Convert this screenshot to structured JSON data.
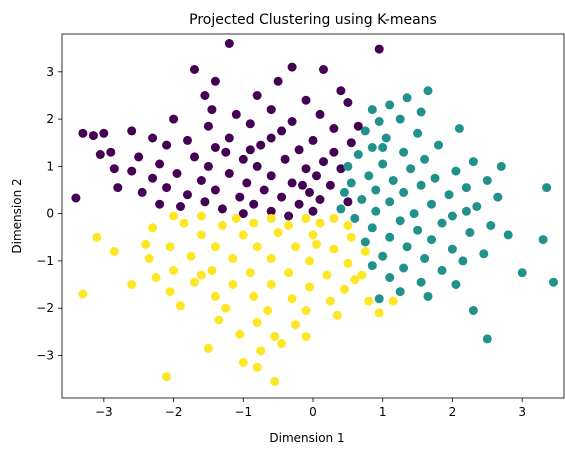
{
  "chart_data": {
    "type": "scatter",
    "title": "Projected Clustering using K-means",
    "xlabel": "Dimension 1",
    "ylabel": "Dimension 2",
    "xlim": [
      -3.6,
      3.6
    ],
    "ylim": [
      -3.9,
      3.8
    ],
    "xticks": [
      -3,
      -2,
      -1,
      0,
      1,
      2,
      3
    ],
    "yticks": [
      -3,
      -2,
      -1,
      0,
      1,
      2,
      3
    ],
    "xtick_labels": [
      "−3",
      "−2",
      "−1",
      "0",
      "1",
      "2",
      "3"
    ],
    "ytick_labels": [
      "−3",
      "−2",
      "−1",
      "0",
      "1",
      "2",
      "3"
    ],
    "grid": false,
    "legend": "none",
    "colors": {
      "purple": "#440154",
      "teal": "#21918c",
      "yellow": "#fde725"
    },
    "series": [
      {
        "color": "#440154",
        "points": [
          [
            -1.2,
            3.6
          ],
          [
            0.95,
            3.48
          ],
          [
            -0.3,
            3.1
          ],
          [
            0.15,
            3.05
          ],
          [
            -1.7,
            3.05
          ],
          [
            -1.4,
            2.8
          ],
          [
            -0.5,
            2.8
          ],
          [
            0.4,
            2.6
          ],
          [
            -1.55,
            2.5
          ],
          [
            -0.8,
            2.5
          ],
          [
            -0.1,
            2.4
          ],
          [
            0.5,
            2.35
          ],
          [
            -1.45,
            2.2
          ],
          [
            -1.1,
            2.1
          ],
          [
            -0.6,
            2.2
          ],
          [
            0.1,
            2.1
          ],
          [
            -2.0,
            2.0
          ],
          [
            -1.5,
            1.85
          ],
          [
            -0.9,
            1.9
          ],
          [
            -0.3,
            1.95
          ],
          [
            0.3,
            1.8
          ],
          [
            0.65,
            1.85
          ],
          [
            -2.6,
            1.75
          ],
          [
            -3.0,
            1.7
          ],
          [
            -3.3,
            1.7
          ],
          [
            -3.15,
            1.65
          ],
          [
            -2.3,
            1.6
          ],
          [
            -1.8,
            1.55
          ],
          [
            -1.2,
            1.6
          ],
          [
            -0.6,
            1.6
          ],
          [
            0.0,
            1.55
          ],
          [
            0.55,
            1.5
          ],
          [
            -2.1,
            1.45
          ],
          [
            -1.4,
            1.4
          ],
          [
            -0.9,
            1.35
          ],
          [
            -0.2,
            1.35
          ],
          [
            0.3,
            1.3
          ],
          [
            -3.05,
            1.25
          ],
          [
            -2.9,
            1.3
          ],
          [
            -2.5,
            1.2
          ],
          [
            -1.7,
            1.2
          ],
          [
            -1.0,
            1.15
          ],
          [
            -0.4,
            1.15
          ],
          [
            0.15,
            1.1
          ],
          [
            -2.2,
            1.05
          ],
          [
            -1.5,
            1.0
          ],
          [
            -0.8,
            1.0
          ],
          [
            -0.1,
            0.95
          ],
          [
            0.4,
            0.95
          ],
          [
            -2.85,
            0.95
          ],
          [
            -2.6,
            0.9
          ],
          [
            -1.95,
            0.85
          ],
          [
            -1.2,
            0.85
          ],
          [
            -0.6,
            0.8
          ],
          [
            0.05,
            0.8
          ],
          [
            -2.3,
            0.75
          ],
          [
            -1.6,
            0.7
          ],
          [
            -0.95,
            0.65
          ],
          [
            -0.3,
            0.65
          ],
          [
            0.25,
            0.6
          ],
          [
            -2.1,
            0.55
          ],
          [
            -1.4,
            0.5
          ],
          [
            -0.7,
            0.5
          ],
          [
            -0.05,
            0.45
          ],
          [
            -2.8,
            0.55
          ],
          [
            -2.45,
            0.45
          ],
          [
            -1.8,
            0.4
          ],
          [
            -1.05,
            0.35
          ],
          [
            -0.45,
            0.35
          ],
          [
            0.1,
            0.3
          ],
          [
            -1.55,
            0.25
          ],
          [
            -0.85,
            0.2
          ],
          [
            -0.2,
            0.2
          ],
          [
            -1.3,
            0.1
          ],
          [
            -0.6,
            0.05
          ],
          [
            0.0,
            0.05
          ],
          [
            -3.4,
            0.33
          ],
          [
            -2.2,
            0.2
          ],
          [
            -1.0,
            0.0
          ],
          [
            -0.35,
            -0.05
          ],
          [
            -1.9,
            0.15
          ],
          [
            -0.15,
            0.6
          ],
          [
            -1.25,
            1.3
          ],
          [
            -0.45,
            1.75
          ],
          [
            0.5,
            0.25
          ],
          [
            -0.75,
            1.45
          ]
        ]
      },
      {
        "color": "#21918c",
        "points": [
          [
            1.65,
            2.6
          ],
          [
            1.35,
            2.45
          ],
          [
            1.1,
            2.3
          ],
          [
            0.85,
            2.2
          ],
          [
            1.55,
            2.15
          ],
          [
            1.25,
            2.0
          ],
          [
            0.95,
            1.95
          ],
          [
            2.1,
            1.8
          ],
          [
            0.75,
            1.75
          ],
          [
            1.5,
            1.7
          ],
          [
            1.05,
            1.6
          ],
          [
            1.8,
            1.45
          ],
          [
            0.85,
            1.4
          ],
          [
            1.3,
            1.3
          ],
          [
            0.65,
            1.25
          ],
          [
            1.6,
            1.15
          ],
          [
            2.3,
            1.1
          ],
          [
            1.0,
            1.05
          ],
          [
            0.5,
            1.0
          ],
          [
            2.7,
            1.0
          ],
          [
            1.4,
            0.95
          ],
          [
            2.05,
            0.9
          ],
          [
            0.8,
            0.8
          ],
          [
            1.75,
            0.75
          ],
          [
            1.15,
            0.7
          ],
          [
            2.5,
            0.7
          ],
          [
            0.55,
            0.65
          ],
          [
            1.55,
            0.6
          ],
          [
            2.2,
            0.55
          ],
          [
            3.35,
            0.55
          ],
          [
            0.9,
            0.5
          ],
          [
            1.3,
            0.45
          ],
          [
            1.95,
            0.4
          ],
          [
            2.65,
            0.35
          ],
          [
            0.7,
            0.3
          ],
          [
            1.1,
            0.25
          ],
          [
            1.7,
            0.2
          ],
          [
            2.35,
            0.15
          ],
          [
            0.4,
            0.1
          ],
          [
            0.9,
            0.05
          ],
          [
            1.45,
            0.0
          ],
          [
            2.0,
            -0.05
          ],
          [
            0.6,
            -0.1
          ],
          [
            1.25,
            -0.15
          ],
          [
            1.85,
            -0.2
          ],
          [
            2.55,
            -0.25
          ],
          [
            0.85,
            -0.3
          ],
          [
            1.5,
            -0.35
          ],
          [
            2.25,
            -0.4
          ],
          [
            2.8,
            -0.45
          ],
          [
            1.1,
            -0.5
          ],
          [
            1.7,
            -0.55
          ],
          [
            3.3,
            -0.55
          ],
          [
            0.75,
            -0.6
          ],
          [
            1.35,
            -0.7
          ],
          [
            2.0,
            -0.75
          ],
          [
            2.45,
            -0.85
          ],
          [
            1.0,
            -0.9
          ],
          [
            1.6,
            -0.95
          ],
          [
            2.15,
            -1.0
          ],
          [
            0.85,
            -1.1
          ],
          [
            1.3,
            -1.15
          ],
          [
            1.85,
            -1.2
          ],
          [
            3.0,
            -1.25
          ],
          [
            1.1,
            -1.35
          ],
          [
            1.55,
            -1.45
          ],
          [
            2.05,
            -1.5
          ],
          [
            3.45,
            -1.45
          ],
          [
            1.25,
            -1.65
          ],
          [
            1.65,
            -1.75
          ],
          [
            0.95,
            -1.8
          ],
          [
            2.3,
            -2.05
          ],
          [
            2.5,
            -2.65
          ],
          [
            0.45,
            0.45
          ],
          [
            1.0,
            1.4
          ],
          [
            2.2,
            0.05
          ]
        ]
      },
      {
        "color": "#fde725",
        "points": [
          [
            -2.0,
            -0.05
          ],
          [
            -1.6,
            -0.05
          ],
          [
            -1.1,
            -0.1
          ],
          [
            -0.6,
            -0.1
          ],
          [
            -0.1,
            -0.1
          ],
          [
            0.3,
            -0.1
          ],
          [
            -1.85,
            -0.2
          ],
          [
            -1.3,
            -0.25
          ],
          [
            -0.85,
            -0.2
          ],
          [
            -0.35,
            -0.25
          ],
          [
            0.1,
            -0.2
          ],
          [
            0.5,
            -0.25
          ],
          [
            -3.1,
            -0.5
          ],
          [
            -2.4,
            -0.65
          ],
          [
            -1.6,
            -0.45
          ],
          [
            -1.0,
            -0.45
          ],
          [
            -0.5,
            -0.4
          ],
          [
            0.0,
            -0.45
          ],
          [
            0.55,
            -0.5
          ],
          [
            -2.05,
            -0.7
          ],
          [
            -1.4,
            -0.7
          ],
          [
            -0.8,
            -0.7
          ],
          [
            -0.25,
            -0.7
          ],
          [
            0.3,
            -0.75
          ],
          [
            0.75,
            -0.8
          ],
          [
            -2.85,
            -0.8
          ],
          [
            -2.35,
            -0.95
          ],
          [
            -1.75,
            -0.9
          ],
          [
            -1.15,
            -0.95
          ],
          [
            -0.6,
            -0.95
          ],
          [
            -0.05,
            -1.0
          ],
          [
            0.5,
            -1.05
          ],
          [
            -2.0,
            -1.2
          ],
          [
            -1.45,
            -1.2
          ],
          [
            -0.9,
            -1.25
          ],
          [
            -0.35,
            -1.25
          ],
          [
            0.2,
            -1.3
          ],
          [
            0.7,
            -1.3
          ],
          [
            -2.25,
            -1.35
          ],
          [
            -1.7,
            -1.45
          ],
          [
            -1.15,
            -1.5
          ],
          [
            -0.6,
            -1.5
          ],
          [
            -0.05,
            -1.55
          ],
          [
            0.45,
            -1.6
          ],
          [
            -2.6,
            -1.5
          ],
          [
            -2.05,
            -1.65
          ],
          [
            -1.4,
            -1.75
          ],
          [
            -0.85,
            -1.75
          ],
          [
            -0.3,
            -1.8
          ],
          [
            0.25,
            -1.85
          ],
          [
            0.8,
            -1.85
          ],
          [
            -3.3,
            -1.7
          ],
          [
            -1.9,
            -1.95
          ],
          [
            -1.25,
            -2.0
          ],
          [
            -0.65,
            -2.05
          ],
          [
            -0.1,
            -2.05
          ],
          [
            0.35,
            -2.15
          ],
          [
            0.95,
            -2.1
          ],
          [
            -1.35,
            -2.25
          ],
          [
            -0.8,
            -2.3
          ],
          [
            -0.25,
            -2.35
          ],
          [
            -1.05,
            -2.55
          ],
          [
            -0.55,
            -2.6
          ],
          [
            -0.1,
            -2.6
          ],
          [
            -1.5,
            -2.85
          ],
          [
            -0.75,
            -2.9
          ],
          [
            -1.0,
            -3.15
          ],
          [
            -0.8,
            -3.25
          ],
          [
            -2.1,
            -3.45
          ],
          [
            -0.55,
            -3.55
          ],
          [
            1.15,
            -1.85
          ],
          [
            -2.3,
            -0.3
          ],
          [
            -0.45,
            -2.75
          ],
          [
            0.6,
            -1.4
          ],
          [
            -1.6,
            -1.3
          ],
          [
            0.05,
            -0.65
          ]
        ]
      }
    ]
  }
}
